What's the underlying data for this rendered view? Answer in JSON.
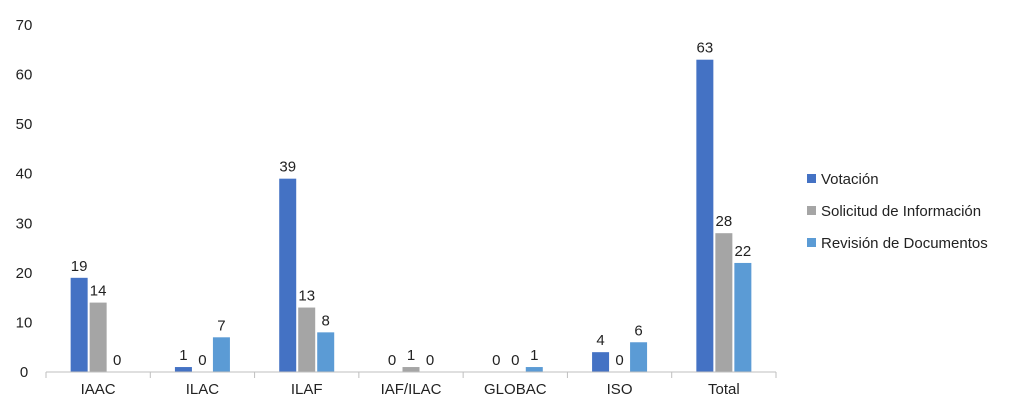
{
  "chart_data": {
    "type": "bar",
    "title": "",
    "xlabel": "",
    "ylabel": "",
    "ylim": [
      0,
      70
    ],
    "yticks": [
      0,
      10,
      20,
      30,
      40,
      50,
      60,
      70
    ],
    "grid": false,
    "legend_position": "right",
    "categories": [
      "IAAC",
      "ILAC",
      "ILAF",
      "IAF/ILAC",
      "GLOBAC",
      "ISO",
      "Total"
    ],
    "series": [
      {
        "name": "Votación",
        "color": "#4472c4",
        "values": [
          19,
          1,
          39,
          0,
          0,
          4,
          63
        ]
      },
      {
        "name": "Solicitud de Información",
        "color": "#a5a5a5",
        "values": [
          14,
          0,
          13,
          1,
          0,
          0,
          28
        ]
      },
      {
        "name": "Revisión de Documentos",
        "color": "#5b9bd5",
        "values": [
          0,
          7,
          8,
          0,
          1,
          6,
          22
        ]
      }
    ]
  }
}
